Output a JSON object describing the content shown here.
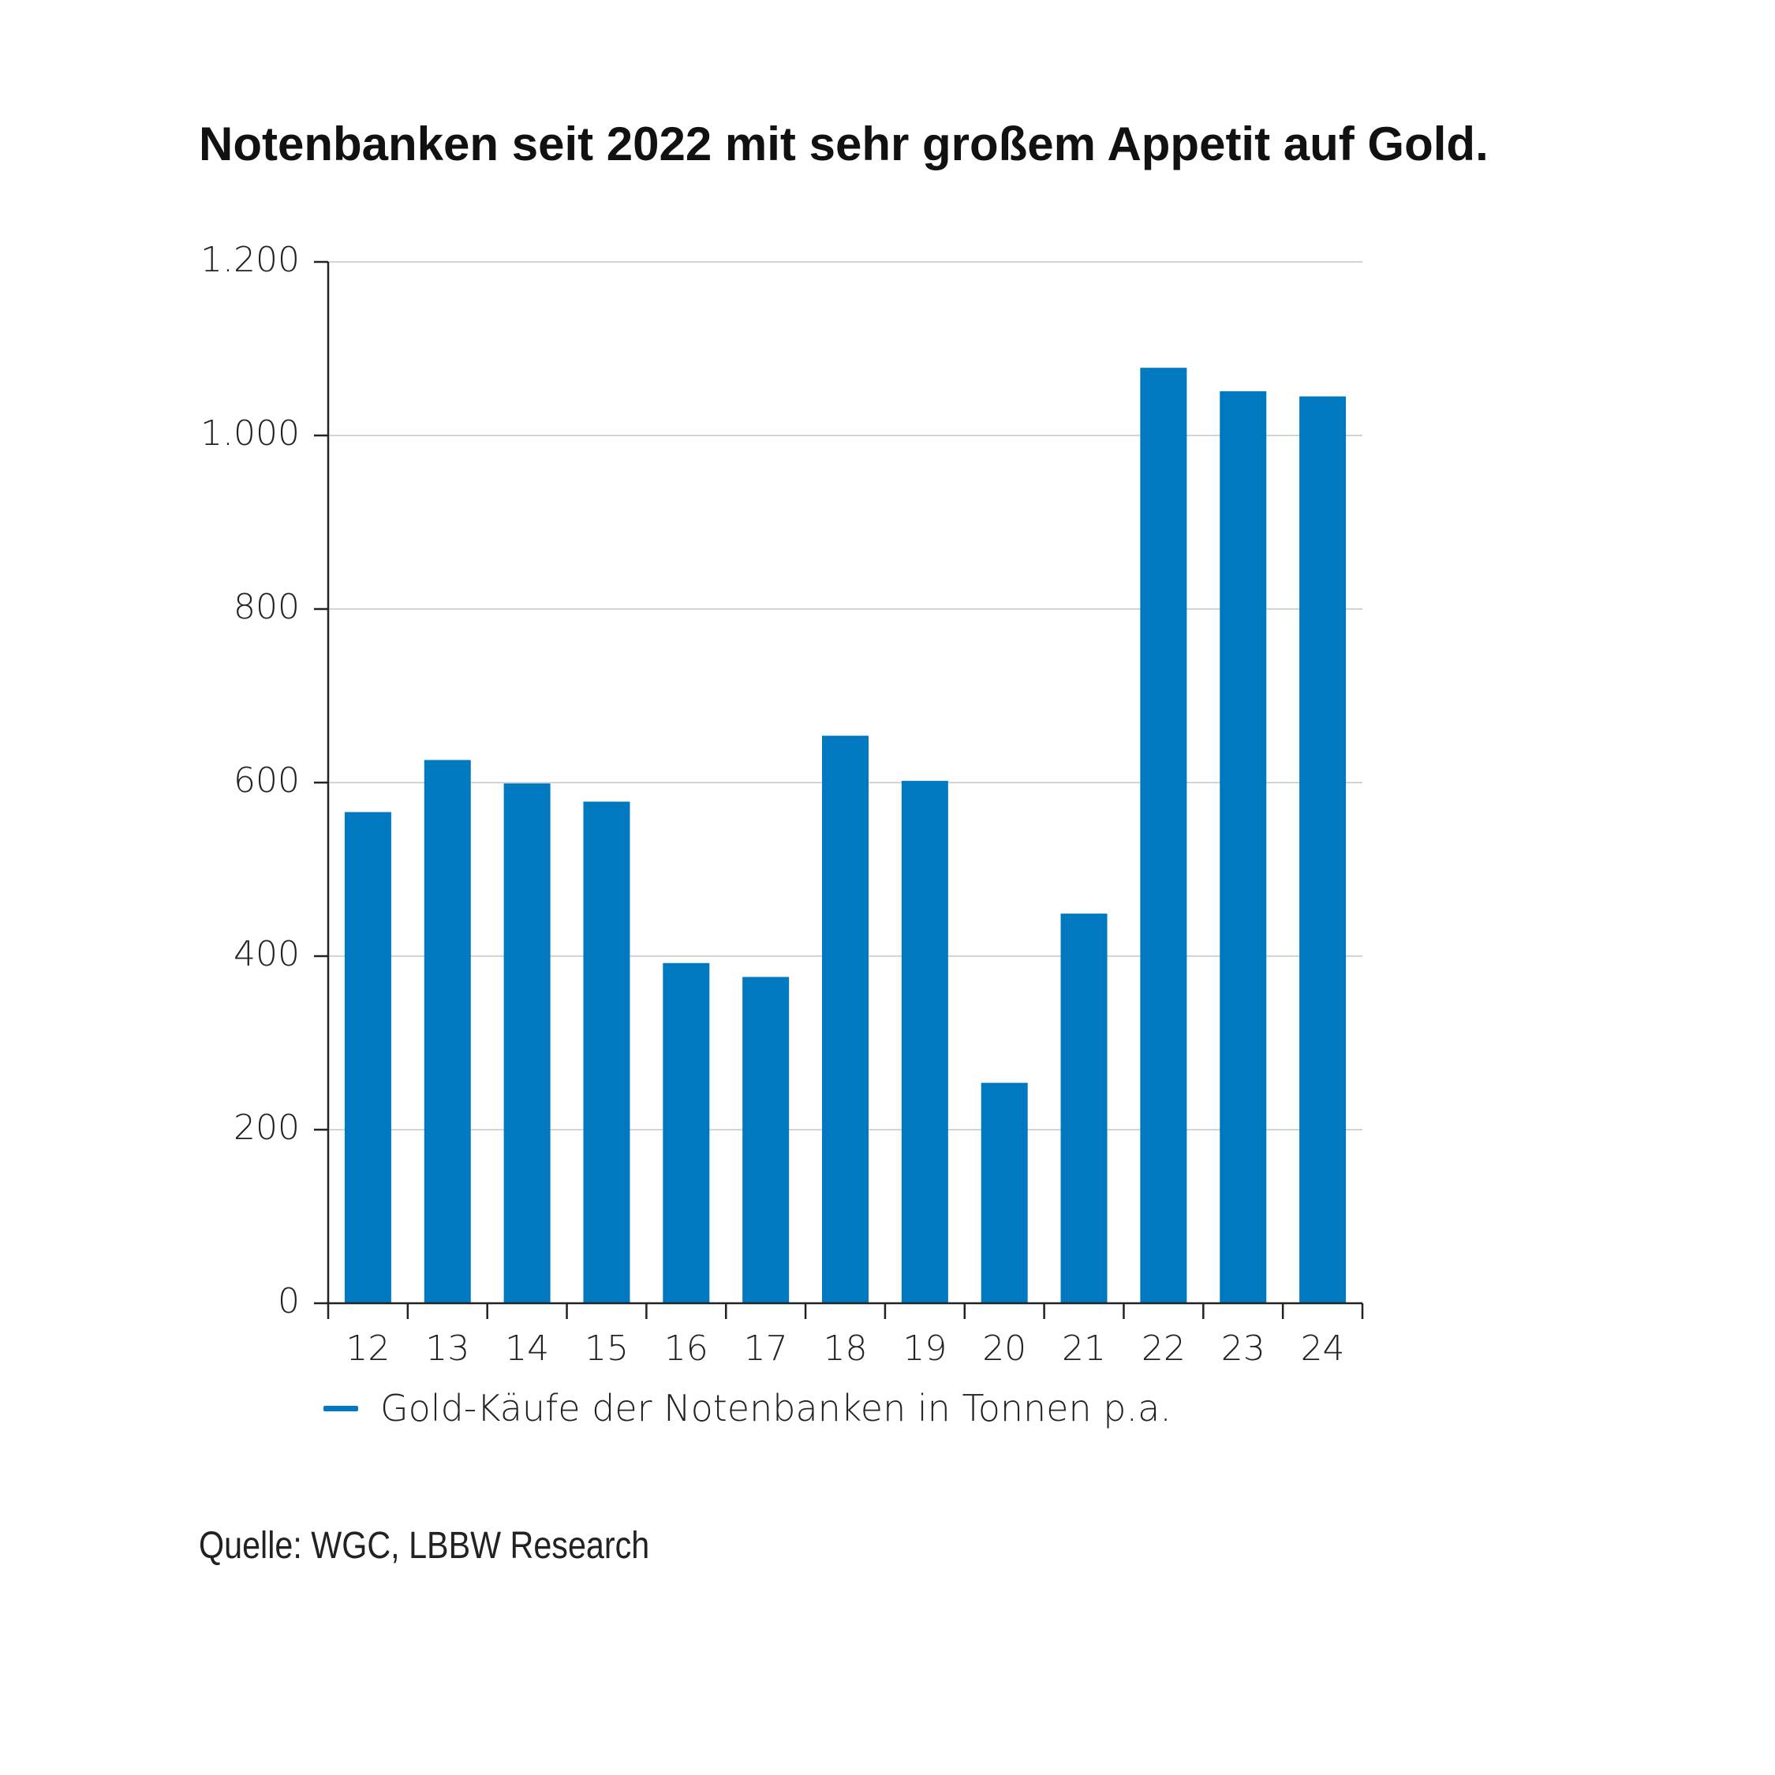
{
  "title": "Notenbanken seit 2022 mit sehr großem Appetit auf Gold.",
  "source": "Quelle: WGC, LBBW Research",
  "legend": {
    "label": "Gold-Käufe der Notenbanken in Tonnen p.a.",
    "color": "#0079C1"
  },
  "chart_data": {
    "type": "bar",
    "categories": [
      "12",
      "13",
      "14",
      "15",
      "16",
      "17",
      "18",
      "19",
      "20",
      "21",
      "22",
      "23",
      "24"
    ],
    "series": [
      {
        "name": "Gold-Käufe der Notenbanken in Tonnen p.a.",
        "values": [
          566,
          626,
          599,
          578,
          392,
          376,
          654,
          602,
          254,
          449,
          1078,
          1051,
          1045
        ],
        "color": "#0079C1"
      }
    ],
    "ylim": [
      0,
      1200
    ],
    "yticks": [
      0,
      200,
      400,
      600,
      800,
      1000,
      1200
    ],
    "ytick_labels": [
      "0",
      "200",
      "400",
      "600",
      "800",
      "1.000",
      "1.200"
    ],
    "grid": true,
    "legend_position": "bottom-left"
  }
}
